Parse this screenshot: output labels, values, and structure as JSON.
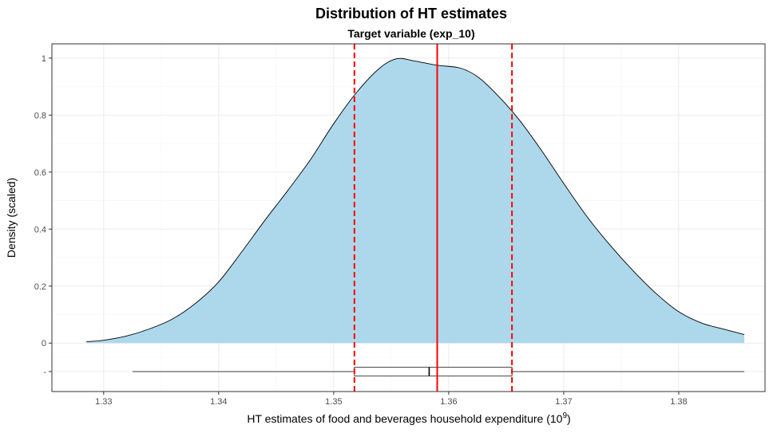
{
  "chart_data": {
    "type": "area",
    "title": "Distribution of HT estimates",
    "subtitle": "Target variable (exp_10)",
    "xlabel": "HT estimates of food and beverages household expenditure (10",
    "xlabel_superscript": "9",
    "xlabel_suffix": ")",
    "ylabel": "Density (scaled)",
    "xlim": [
      1.3255,
      1.3875
    ],
    "ylim": [
      -0.17,
      1.05
    ],
    "x_ticks": [
      "1.33",
      "1.34",
      "1.35",
      "1.36",
      "1.37",
      "1.38"
    ],
    "y_ticks": [
      "0",
      "0.2",
      "0.4",
      "0.6",
      "0.8",
      "1",
      "-"
    ],
    "y_tick_values": [
      0,
      0.2,
      0.4,
      0.6,
      0.8,
      1,
      -0.1
    ],
    "grid": true,
    "legend": "none",
    "density": {
      "x": [
        1.3285,
        1.33,
        1.332,
        1.334,
        1.336,
        1.338,
        1.34,
        1.342,
        1.344,
        1.346,
        1.348,
        1.35,
        1.352,
        1.354,
        1.3555,
        1.357,
        1.359,
        1.361,
        1.3625,
        1.364,
        1.366,
        1.368,
        1.37,
        1.372,
        1.374,
        1.376,
        1.378,
        1.38,
        1.382,
        1.384,
        1.3857
      ],
      "y": [
        0.005,
        0.01,
        0.025,
        0.05,
        0.085,
        0.14,
        0.215,
        0.32,
        0.43,
        0.535,
        0.645,
        0.77,
        0.88,
        0.965,
        0.998,
        0.99,
        0.975,
        0.965,
        0.935,
        0.88,
        0.79,
        0.68,
        0.56,
        0.445,
        0.345,
        0.255,
        0.175,
        0.11,
        0.07,
        0.048,
        0.03
      ],
      "fill": "#add8ec",
      "stroke": "#000000"
    },
    "boxplot": {
      "y": -0.1,
      "whisker_low": 1.3325,
      "q1": 1.3518,
      "median": 1.3583,
      "q3": 1.3655,
      "whisker_high": 1.3857
    },
    "vlines": [
      {
        "x": 1.3518,
        "style": "dashed",
        "color": "#ff0000"
      },
      {
        "x": 1.359,
        "style": "solid",
        "color": "#ff0000"
      },
      {
        "x": 1.3655,
        "style": "dashed",
        "color": "#ff0000"
      }
    ]
  }
}
